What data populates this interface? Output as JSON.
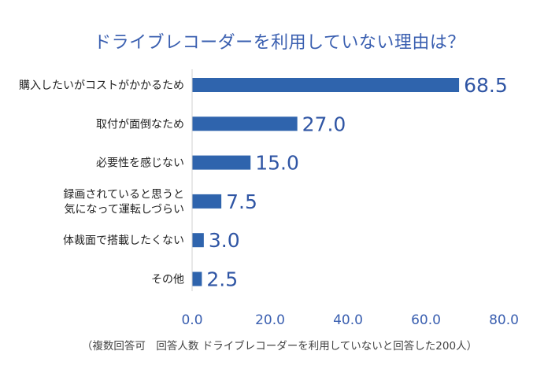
{
  "chart_data": {
    "type": "bar",
    "orientation": "horizontal",
    "title": "ドライブレコーダーを利用していない理由は？",
    "categories": [
      [
        "購入したいがコストがかかるため"
      ],
      [
        "取付が面倒なため"
      ],
      [
        "必要性を感じない"
      ],
      [
        "録画されていると思うと",
        "気になって運転しづらい"
      ],
      [
        "体裁面で搭載したくない"
      ],
      [
        "その他"
      ]
    ],
    "values": [
      68.5,
      27.0,
      15.0,
      7.5,
      3.0,
      2.5
    ],
    "value_labels": [
      "68.5",
      "27.0",
      "15.0",
      "7.5",
      "3.0",
      "2.5"
    ],
    "xlim": [
      0,
      80
    ],
    "xticks": [
      0,
      20,
      40,
      60,
      80
    ],
    "xtick_labels": [
      "0.0",
      "20.0",
      "40.0",
      "60.0",
      "80.0"
    ],
    "xlabel": "",
    "ylabel": "",
    "grid": false,
    "bar_color": "#2f64ad",
    "footnote": "（複数回答可　回答人数 ドライブレコーダーを利用していないと回答した200人）"
  }
}
